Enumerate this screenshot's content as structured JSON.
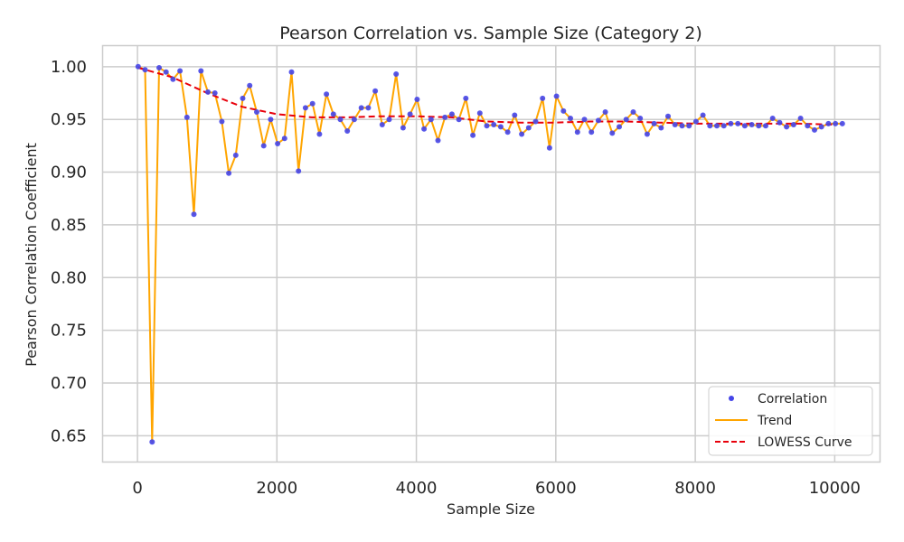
{
  "chart_data": {
    "type": "line",
    "title": "Pearson Correlation vs. Sample Size (Category 2)",
    "xlabel": "Sample Size",
    "ylabel": "Pearson Correlation Coefficient",
    "xlim": [
      -500,
      10650
    ],
    "ylim": [
      0.625,
      1.02
    ],
    "xticks": [
      0,
      2000,
      4000,
      6000,
      8000,
      10000
    ],
    "xtick_labels": [
      "0",
      "2000",
      "4000",
      "6000",
      "8000",
      "10000"
    ],
    "yticks": [
      0.65,
      0.7,
      0.75,
      0.8,
      0.85,
      0.9,
      0.95,
      1.0
    ],
    "ytick_labels": [
      "0.65",
      "0.70",
      "0.75",
      "0.80",
      "0.85",
      "0.90",
      "0.95",
      "1.00"
    ],
    "grid": true,
    "legend_position": "lower-right",
    "x": [
      10,
      110,
      210,
      310,
      410,
      510,
      610,
      710,
      810,
      910,
      1010,
      1110,
      1210,
      1310,
      1410,
      1510,
      1610,
      1710,
      1810,
      1910,
      2010,
      2110,
      2210,
      2310,
      2410,
      2510,
      2610,
      2710,
      2810,
      2910,
      3010,
      3110,
      3210,
      3310,
      3410,
      3510,
      3610,
      3710,
      3810,
      3910,
      4010,
      4110,
      4210,
      4310,
      4410,
      4510,
      4610,
      4710,
      4810,
      4910,
      5010,
      5110,
      5210,
      5310,
      5410,
      5510,
      5610,
      5710,
      5810,
      5910,
      6010,
      6110,
      6210,
      6310,
      6410,
      6510,
      6610,
      6710,
      6810,
      6910,
      7010,
      7110,
      7210,
      7310,
      7410,
      7510,
      7610,
      7710,
      7810,
      7910,
      8010,
      8110,
      8210,
      8310,
      8410,
      8510,
      8610,
      8710,
      8810,
      8910,
      9010,
      9110,
      9210,
      9310,
      9410,
      9510,
      9610,
      9710,
      9810,
      9910,
      10010,
      10110
    ],
    "series": [
      {
        "name": "Correlation",
        "kind": "scatter",
        "color": "#4545e8",
        "values": [
          1.0,
          0.997,
          0.644,
          0.999,
          0.995,
          0.988,
          0.996,
          0.952,
          0.86,
          0.996,
          0.976,
          0.975,
          0.948,
          0.899,
          0.916,
          0.97,
          0.982,
          0.957,
          0.925,
          0.95,
          0.927,
          0.932,
          0.995,
          0.901,
          0.961,
          0.965,
          0.936,
          0.974,
          0.955,
          0.95,
          0.939,
          0.95,
          0.961,
          0.961,
          0.977,
          0.945,
          0.95,
          0.993,
          0.942,
          0.955,
          0.969,
          0.941,
          0.95,
          0.93,
          0.952,
          0.955,
          0.95,
          0.97,
          0.935,
          0.956,
          0.944,
          0.945,
          0.943,
          0.938,
          0.954,
          0.936,
          0.942,
          0.948,
          0.97,
          0.923,
          0.972,
          0.958,
          0.951,
          0.938,
          0.95,
          0.938,
          0.949,
          0.957,
          0.937,
          0.943,
          0.95,
          0.957,
          0.951,
          0.936,
          0.946,
          0.942,
          0.953,
          0.945,
          0.944,
          0.944,
          0.948,
          0.954,
          0.944,
          0.944,
          0.944,
          0.946,
          0.946,
          0.944,
          0.945,
          0.944,
          0.944,
          0.951,
          0.947,
          0.943,
          0.945,
          0.951,
          0.944,
          0.94,
          0.943,
          0.946,
          0.946,
          0.946
        ]
      },
      {
        "name": "Trend",
        "kind": "line",
        "color": "#ffa500",
        "same_values_as": "Correlation"
      },
      {
        "name": "LOWESS Curve",
        "kind": "dashed-line",
        "color": "#e8000b",
        "x": [
          10,
          500,
          1000,
          1500,
          2000,
          2500,
          3000,
          3500,
          4000,
          4500,
          5000,
          5500,
          6000,
          6500,
          7000,
          7500,
          8000,
          8500,
          9000,
          9500,
          10010
        ],
        "values": [
          0.999,
          0.99,
          0.975,
          0.962,
          0.955,
          0.952,
          0.952,
          0.953,
          0.953,
          0.952,
          0.948,
          0.947,
          0.947,
          0.948,
          0.948,
          0.947,
          0.946,
          0.946,
          0.946,
          0.946,
          0.945
        ]
      }
    ]
  }
}
